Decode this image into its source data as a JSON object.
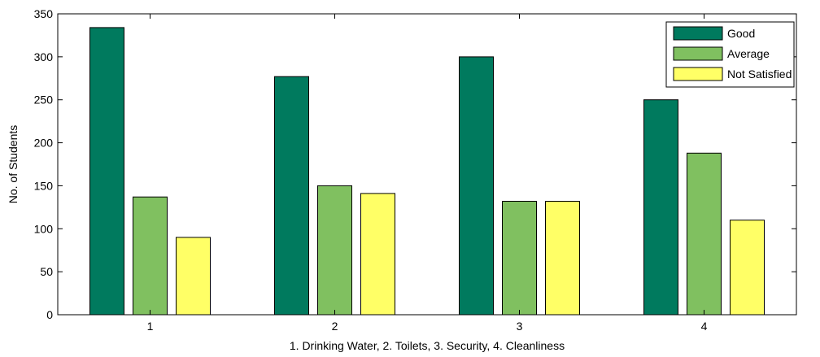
{
  "chart_data": {
    "type": "bar",
    "categories": [
      "1",
      "2",
      "3",
      "4"
    ],
    "series": [
      {
        "name": "Good",
        "values": [
          334,
          277,
          300,
          250
        ],
        "color": "#007a5e"
      },
      {
        "name": "Average",
        "values": [
          137,
          150,
          132,
          188
        ],
        "color": "#80c060"
      },
      {
        "name": "Not Satisfied",
        "values": [
          90,
          141,
          132,
          110
        ],
        "color": "#ffff66"
      }
    ],
    "xlabel": "1. Drinking Water, 2. Toilets, 3. Security, 4. Cleanliness",
    "ylabel": "No. of Students",
    "ylim": [
      0,
      350
    ],
    "yticks": [
      0,
      50,
      100,
      150,
      200,
      250,
      300,
      350
    ],
    "grid": false,
    "legend_position": "top-right"
  }
}
